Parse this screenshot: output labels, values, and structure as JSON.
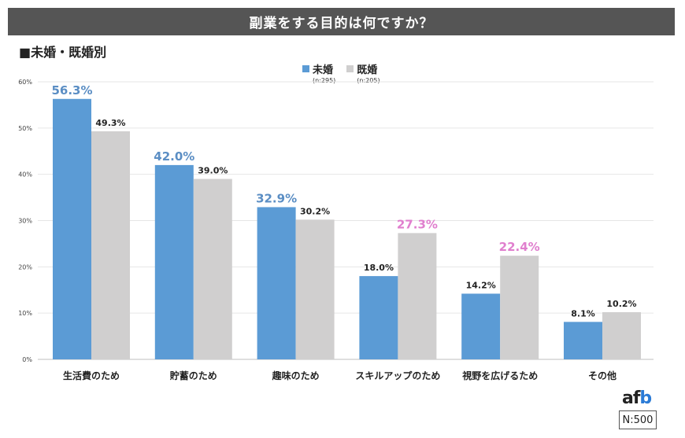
{
  "title": "副業をする目的は何ですか？",
  "subtitle": "■未婚・既婚別",
  "n_total": "N:500",
  "colors": {
    "unmarried": "#5b9bd5",
    "married": "#d0cfcf",
    "highlight_unmarried": "#5b8ec4",
    "highlight_married": "#e07fce",
    "default_label": "#222222"
  },
  "chart_data": {
    "type": "bar",
    "categories": [
      "生活費のため",
      "貯蓄のため",
      "趣味のため",
      "スキルアップのため",
      "視野を広げるため",
      "その他"
    ],
    "series": [
      {
        "name": "未婚",
        "note": "(n:295)",
        "values": [
          56.3,
          42.0,
          32.9,
          18.0,
          14.2,
          8.1
        ],
        "labels": [
          "56.3%",
          "42.0%",
          "32.9%",
          "18.0%",
          "14.2%",
          "8.1%"
        ],
        "highlight": [
          true,
          true,
          true,
          false,
          false,
          false
        ]
      },
      {
        "name": "既婚",
        "note": "(n:205)",
        "values": [
          49.3,
          39.0,
          30.2,
          27.3,
          22.4,
          10.2
        ],
        "labels": [
          "49.3%",
          "39.0%",
          "30.2%",
          "27.3%",
          "22.4%",
          "10.2%"
        ],
        "highlight": [
          false,
          false,
          false,
          true,
          true,
          false
        ]
      }
    ],
    "ylim": [
      0,
      60
    ],
    "yticks": [
      "0%",
      "10%",
      "20%",
      "30%",
      "40%",
      "50%",
      "60%"
    ],
    "grid": true,
    "legend_position": "top-center"
  }
}
